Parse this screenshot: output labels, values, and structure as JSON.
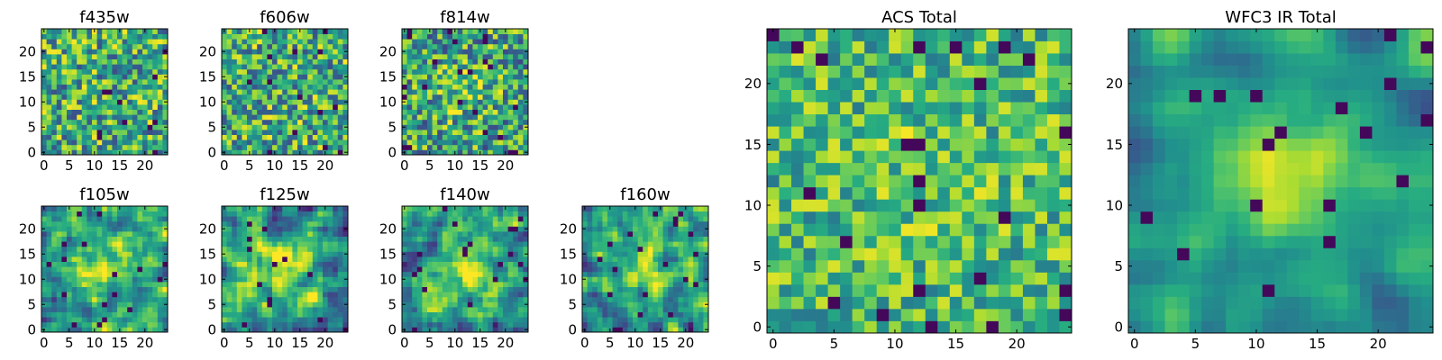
{
  "figure": {
    "colormap": "viridis",
    "colors": {
      "low": "#440154",
      "high": "#fde725",
      "frame": "#000000",
      "background": "#ffffff"
    },
    "panels": [
      {
        "title": "f435w",
        "xticks": [
          "0",
          "5",
          "10",
          "15",
          "20"
        ],
        "yticks": [
          "0",
          "5",
          "10",
          "15",
          "20"
        ],
        "size": 25,
        "pattern": "noise",
        "seed": 11
      },
      {
        "title": "f606w",
        "xticks": [
          "0",
          "5",
          "10",
          "15",
          "20"
        ],
        "yticks": [
          "0",
          "5",
          "10",
          "15",
          "20"
        ],
        "size": 25,
        "pattern": "noise",
        "seed": 23
      },
      {
        "title": "f814w",
        "xticks": [
          "0",
          "5",
          "10",
          "15",
          "20"
        ],
        "yticks": [
          "0",
          "5",
          "10",
          "15",
          "20"
        ],
        "size": 25,
        "pattern": "faint-center",
        "seed": 37
      },
      {
        "title": "f105w",
        "xticks": [
          "0",
          "5",
          "10",
          "15",
          "20"
        ],
        "yticks": [
          "0",
          "5",
          "10",
          "15",
          "20"
        ],
        "size": 25,
        "pattern": "center",
        "seed": 41
      },
      {
        "title": "f125w",
        "xticks": [
          "0",
          "5",
          "10",
          "15",
          "20"
        ],
        "yticks": [
          "0",
          "5",
          "10",
          "15",
          "20"
        ],
        "size": 25,
        "pattern": "center",
        "seed": 53
      },
      {
        "title": "f140w",
        "xticks": [
          "0",
          "5",
          "10",
          "15",
          "20"
        ],
        "yticks": [
          "0",
          "5",
          "10",
          "15",
          "20"
        ],
        "size": 25,
        "pattern": "center",
        "seed": 67
      },
      {
        "title": "f160w",
        "xticks": [
          "0",
          "5",
          "10",
          "15",
          "20"
        ],
        "yticks": [
          "0",
          "5",
          "10",
          "15",
          "20"
        ],
        "size": 25,
        "pattern": "center",
        "seed": 79
      },
      {
        "title": "ACS Total",
        "xticks": [
          "0",
          "5",
          "10",
          "15",
          "20"
        ],
        "yticks": [
          "0",
          "5",
          "10",
          "15",
          "20"
        ],
        "size": 25,
        "pattern": "noise-bright",
        "seed": 97
      },
      {
        "title": "WFC3 IR Total",
        "xticks": [
          "0",
          "5",
          "10",
          "15",
          "20"
        ],
        "yticks": [
          "0",
          "5",
          "10",
          "15",
          "20"
        ],
        "size": 25,
        "pattern": "strong-center",
        "seed": 113
      }
    ]
  },
  "chart_data": [
    {
      "type": "heatmap",
      "title": "f435w",
      "xlim": [
        0,
        25
      ],
      "ylim": [
        0,
        25
      ],
      "grid": false,
      "description_of_values": "pixel intensity, colormap viridis"
    },
    {
      "type": "heatmap",
      "title": "f606w",
      "xlim": [
        0,
        25
      ],
      "ylim": [
        0,
        25
      ],
      "grid": false
    },
    {
      "type": "heatmap",
      "title": "f814w",
      "xlim": [
        0,
        25
      ],
      "ylim": [
        0,
        25
      ],
      "grid": false
    },
    {
      "type": "heatmap",
      "title": "f105w",
      "xlim": [
        0,
        25
      ],
      "ylim": [
        0,
        25
      ],
      "grid": false
    },
    {
      "type": "heatmap",
      "title": "f125w",
      "xlim": [
        0,
        25
      ],
      "ylim": [
        0,
        25
      ],
      "grid": false
    },
    {
      "type": "heatmap",
      "title": "f140w",
      "xlim": [
        0,
        25
      ],
      "ylim": [
        0,
        25
      ],
      "grid": false
    },
    {
      "type": "heatmap",
      "title": "f160w",
      "xlim": [
        0,
        25
      ],
      "ylim": [
        0,
        25
      ],
      "grid": false
    },
    {
      "type": "heatmap",
      "title": "ACS Total",
      "xlim": [
        0,
        25
      ],
      "ylim": [
        0,
        25
      ],
      "grid": false
    },
    {
      "type": "heatmap",
      "title": "WFC3 IR Total",
      "xlim": [
        0,
        25
      ],
      "ylim": [
        0,
        25
      ],
      "grid": false
    }
  ]
}
